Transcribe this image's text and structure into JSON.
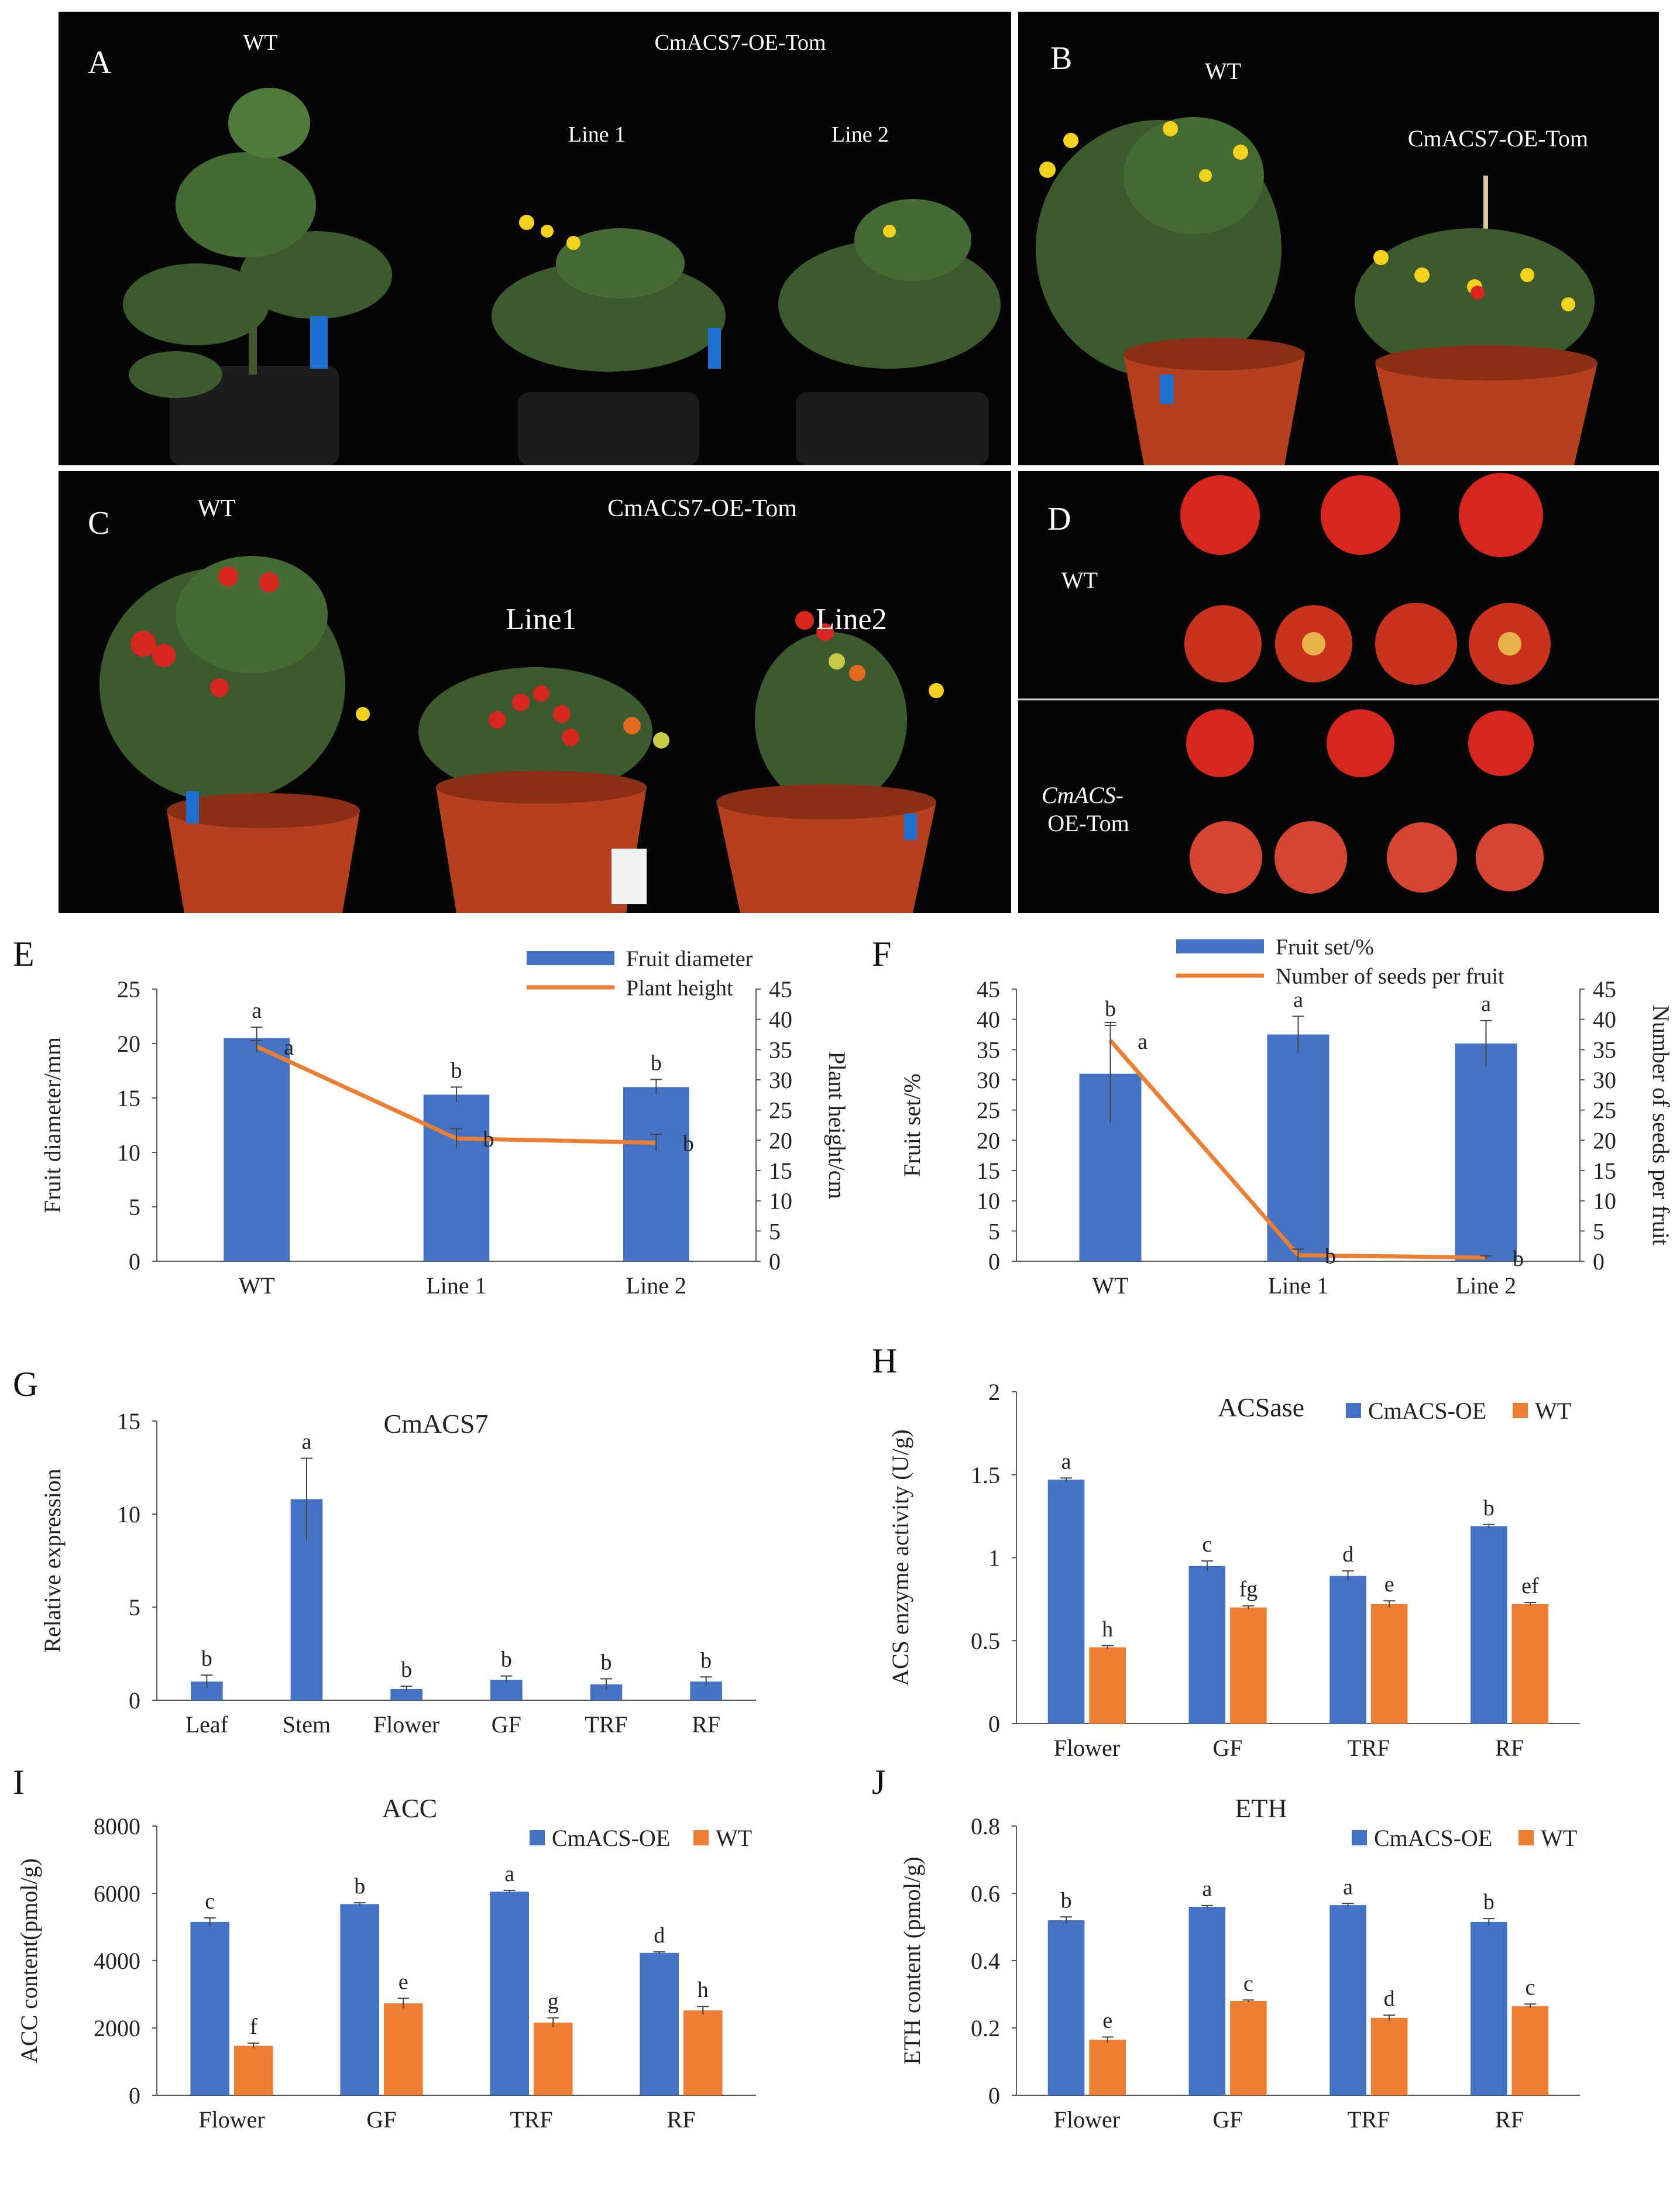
{
  "colors": {
    "blue": "#4472C4",
    "orange": "#ED7D31",
    "axis": "#595959",
    "photo_bg": "#050505",
    "pot": "#B5401E",
    "bag": "#1c1c1c",
    "leaf": "#3d5a2e",
    "flower": "#f2d21a",
    "fruit": "#d7261e",
    "label_blue": "#1f6fd1"
  },
  "panels": {
    "A": {
      "letter": "A",
      "wt": "WT",
      "oe": "CmACS7-OE-Tom",
      "line1": "Line 1",
      "line2": "Line 2"
    },
    "B": {
      "letter": "B",
      "wt": "WT",
      "oe": "CmACS7-OE-Tom"
    },
    "C": {
      "letter": "C",
      "wt": "WT",
      "oe": "CmACS7-OE-Tom",
      "line1": "Line1",
      "line2": "Line2"
    },
    "D": {
      "letter": "D",
      "wt": "WT",
      "oe_a": "CmACS-",
      "oe_b": "OE-Tom"
    }
  },
  "chart_data": [
    {
      "panel": "E",
      "type": "bar+line",
      "categories": [
        "WT",
        "Line 1",
        "Line 2"
      ],
      "series": [
        {
          "name": "Fruit diameter",
          "kind": "bar",
          "axis": "left",
          "values": [
            20.5,
            15.3,
            16.0
          ],
          "errors": [
            1.0,
            0.7,
            0.7
          ],
          "letters": [
            "a",
            "b",
            "b"
          ]
        },
        {
          "name": "Plant height",
          "kind": "line",
          "axis": "right",
          "values": [
            35.5,
            20.3,
            19.6
          ],
          "errors": [
            1.0,
            1.6,
            1.4
          ],
          "letters": [
            "a",
            "b",
            "b"
          ]
        }
      ],
      "ylabel": "Fruit diameter/mm",
      "ylim": [
        0,
        25
      ],
      "yticks": [
        0,
        5,
        10,
        15,
        20,
        25
      ],
      "y2label": "Plant height/cm",
      "y2lim": [
        0,
        45
      ],
      "y2ticks": [
        0,
        5,
        10,
        15,
        20,
        25,
        30,
        35,
        40,
        45
      ],
      "legend": "top-right"
    },
    {
      "panel": "F",
      "type": "bar+line",
      "categories": [
        "WT",
        "Line 1",
        "Line 2"
      ],
      "series": [
        {
          "name": "Fruit set/%",
          "kind": "bar",
          "axis": "left",
          "values": [
            31.0,
            37.5,
            36.0
          ],
          "errors": [
            8.0,
            3.0,
            3.8
          ],
          "letters": [
            "b",
            "a",
            "a"
          ]
        },
        {
          "name": "Number of seeds per fruit",
          "kind": "line",
          "axis": "right",
          "values": [
            36.5,
            1.0,
            0.6
          ],
          "errors": [
            3.0,
            1.0,
            0.3
          ],
          "letters": [
            "a",
            "b",
            "b"
          ]
        }
      ],
      "ylabel": "Fruit set/%",
      "ylim": [
        0,
        45
      ],
      "yticks": [
        0,
        5,
        10,
        15,
        20,
        25,
        30,
        35,
        40,
        45
      ],
      "y2label": "Number of seeds per fruit",
      "y2lim": [
        0,
        45
      ],
      "y2ticks": [
        0,
        5,
        10,
        15,
        20,
        25,
        30,
        35,
        40,
        45
      ],
      "legend": "top"
    },
    {
      "panel": "G",
      "type": "bar",
      "title": "CmACS7",
      "categories": [
        "Leaf",
        "Stem",
        "Flower",
        "GF",
        "TRF",
        "RF"
      ],
      "series": [
        {
          "name": "Relative expression",
          "values": [
            1.0,
            10.8,
            0.6,
            1.1,
            0.85,
            1.0
          ],
          "errors": [
            0.35,
            2.2,
            0.15,
            0.2,
            0.3,
            0.25
          ],
          "letters": [
            "b",
            "a",
            "b",
            "b",
            "b",
            "b"
          ]
        }
      ],
      "ylabel": "Relative expression",
      "ylim": [
        0,
        15
      ],
      "yticks": [
        0,
        5,
        10,
        15
      ]
    },
    {
      "panel": "H",
      "type": "bar",
      "title": "ACSase",
      "categories": [
        "Flower",
        "GF",
        "TRF",
        "RF"
      ],
      "series": [
        {
          "name": "CmACS-OE",
          "values": [
            1.47,
            0.95,
            0.89,
            1.19
          ],
          "errors": [
            0.01,
            0.03,
            0.03,
            0.01
          ],
          "letters": [
            "a",
            "c",
            "d",
            "b"
          ]
        },
        {
          "name": "WT",
          "values": [
            0.46,
            0.7,
            0.72,
            0.72
          ],
          "errors": [
            0.01,
            0.01,
            0.02,
            0.01
          ],
          "letters": [
            "h",
            "fg",
            "e",
            "ef"
          ]
        }
      ],
      "ylabel": "ACS enzyme activity (U/g)",
      "ylim": [
        0,
        2
      ],
      "yticks": [
        "0",
        "0.5",
        "1",
        "1.5",
        "2"
      ],
      "ytick_values": [
        0,
        0.5,
        1,
        1.5,
        2
      ],
      "legend": "top-right"
    },
    {
      "panel": "I",
      "type": "bar",
      "title": "ACC",
      "categories": [
        "Flower",
        "GF",
        "TRF",
        "RF"
      ],
      "series": [
        {
          "name": "CmACS-OE",
          "values": [
            5150,
            5680,
            6050,
            4230
          ],
          "errors": [
            120,
            40,
            40,
            30
          ],
          "letters": [
            "c",
            "b",
            "a",
            "d"
          ]
        },
        {
          "name": "WT",
          "values": [
            1470,
            2730,
            2160,
            2520
          ],
          "errors": [
            80,
            150,
            140,
            120
          ],
          "letters": [
            "f",
            "e",
            "g",
            "h"
          ]
        }
      ],
      "ylabel": "ACC content(pmol/g)",
      "ylim": [
        0,
        8000
      ],
      "yticks": [
        "0",
        "2000",
        "4000",
        "6000",
        "8000"
      ],
      "ytick_values": [
        0,
        2000,
        4000,
        6000,
        8000
      ],
      "legend": "top-right"
    },
    {
      "panel": "J",
      "type": "bar",
      "title": "ETH",
      "categories": [
        "Flower",
        "GF",
        "TRF",
        "RF"
      ],
      "series": [
        {
          "name": "CmACS-OE",
          "values": [
            0.52,
            0.56,
            0.565,
            0.515
          ],
          "errors": [
            0.01,
            0.004,
            0.005,
            0.01
          ],
          "letters": [
            "b",
            "a",
            "a",
            "b"
          ]
        },
        {
          "name": "WT",
          "values": [
            0.165,
            0.28,
            0.23,
            0.265
          ],
          "errors": [
            0.008,
            0.003,
            0.008,
            0.006
          ],
          "letters": [
            "e",
            "c",
            "d",
            "c"
          ]
        }
      ],
      "ylabel": "ETH content (pmol/g)",
      "ylim": [
        0,
        0.8
      ],
      "yticks": [
        "0",
        "0.2",
        "0.4",
        "0.6",
        "0.8"
      ],
      "ytick_values": [
        0,
        0.2,
        0.4,
        0.6,
        0.8
      ],
      "legend": "top-right"
    }
  ]
}
